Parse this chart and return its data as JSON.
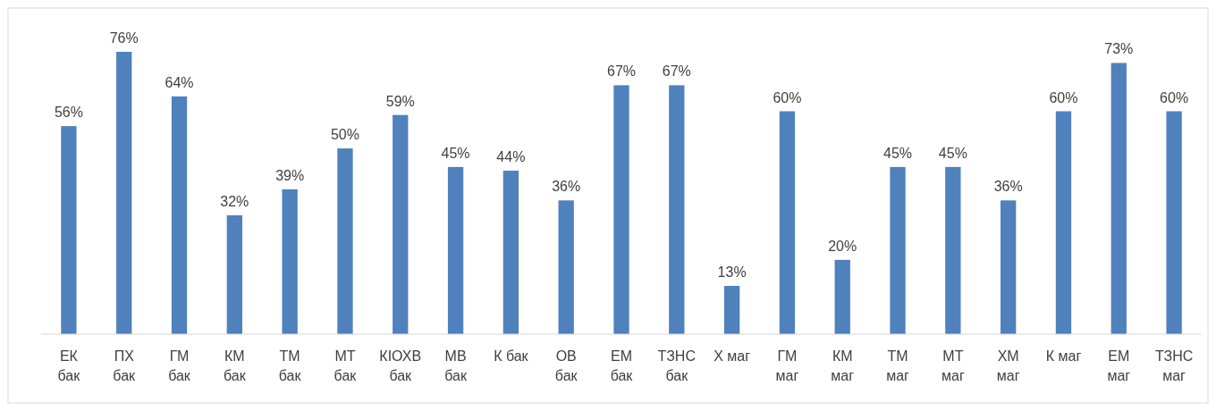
{
  "chart_data": {
    "type": "bar",
    "categories": [
      "ЕК бак",
      "ПХ бак",
      "ГМ бак",
      "КМ бак",
      "ТМ бак",
      "МТ бак",
      "КІОХВ бак",
      "МВ бак",
      "К бак",
      "ОВ бак",
      "ЕМ бак",
      "ТЗНС бак",
      "Х маг",
      "ГМ маг",
      "КМ маг",
      "ТМ маг",
      "МТ маг",
      "ХМ маг",
      "К маг",
      "ЕМ маг",
      "ТЗНС маг"
    ],
    "values": [
      56,
      76,
      64,
      32,
      39,
      50,
      59,
      45,
      44,
      36,
      67,
      67,
      13,
      60,
      20,
      45,
      45,
      36,
      60,
      73,
      60
    ],
    "value_labels": [
      "56%",
      "76%",
      "64%",
      "32%",
      "39%",
      "50%",
      "59%",
      "45%",
      "44%",
      "36%",
      "67%",
      "67%",
      "13%",
      "60%",
      "20%",
      "45%",
      "45%",
      "36%",
      "60%",
      "73%",
      "60%"
    ],
    "color": "#4f81bd"
  }
}
